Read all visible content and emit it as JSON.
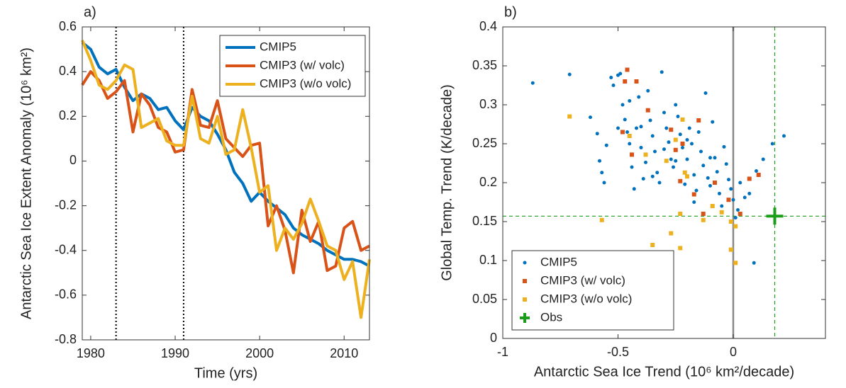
{
  "chart_data": [
    {
      "type": "line",
      "title": "a)",
      "xlabel": "Time (yrs)",
      "ylabel": "Antarctic Sea Ice Extent Anomaly (10⁶ km²)",
      "x": [
        1979,
        1980,
        1981,
        1982,
        1983,
        1984,
        1985,
        1986,
        1987,
        1988,
        1989,
        1990,
        1991,
        1992,
        1993,
        1994,
        1995,
        1996,
        1997,
        1998,
        1999,
        2000,
        2001,
        2002,
        2003,
        2004,
        2005,
        2006,
        2007,
        2008,
        2009,
        2010,
        2011,
        2012,
        2013
      ],
      "series": [
        {
          "name": "CMIP5",
          "color": "#0072bd",
          "values": [
            0.53,
            0.5,
            0.42,
            0.39,
            0.41,
            0.33,
            0.27,
            0.3,
            0.28,
            0.23,
            0.24,
            0.18,
            0.14,
            0.24,
            0.2,
            0.18,
            0.12,
            0.05,
            -0.05,
            -0.1,
            -0.18,
            -0.14,
            -0.18,
            -0.21,
            -0.24,
            -0.3,
            -0.33,
            -0.35,
            -0.37,
            -0.4,
            -0.42,
            -0.44,
            -0.44,
            -0.45,
            -0.47
          ]
        },
        {
          "name": "CMIP3 (w/ volc)",
          "color": "#d95319",
          "values": [
            0.34,
            0.4,
            0.36,
            0.28,
            0.31,
            0.36,
            0.13,
            0.3,
            0.25,
            0.15,
            0.13,
            0.04,
            0.05,
            0.32,
            0.16,
            0.15,
            0.27,
            0.1,
            0.06,
            0.02,
            0.07,
            0.08,
            -0.29,
            -0.2,
            -0.31,
            -0.5,
            -0.22,
            -0.36,
            -0.27,
            -0.49,
            -0.47,
            -0.3,
            -0.27,
            -0.4,
            -0.38
          ]
        },
        {
          "name": "CMIP3 (w/o volc)",
          "color": "#edb120",
          "values": [
            0.54,
            0.45,
            0.34,
            0.32,
            0.36,
            0.43,
            0.41,
            0.15,
            0.17,
            0.19,
            0.09,
            0.07,
            0.07,
            0.29,
            0.1,
            0.08,
            0.2,
            0.03,
            0.05,
            0.23,
            0.06,
            -0.14,
            -0.11,
            -0.4,
            -0.3,
            -0.35,
            -0.28,
            -0.17,
            -0.27,
            -0.38,
            -0.4,
            -0.53,
            -0.45,
            -0.7,
            -0.44
          ]
        }
      ],
      "vlines": [
        1983,
        1991
      ],
      "xlim": [
        1979,
        2013
      ],
      "xticks": [
        1980,
        1990,
        2000,
        2010
      ],
      "ylim": [
        -0.8,
        0.6
      ],
      "yticks": [
        -0.8,
        -0.6,
        -0.4,
        -0.2,
        0,
        0.2,
        0.4,
        0.6
      ],
      "legend": "upper right"
    },
    {
      "type": "scatter",
      "title": "b)",
      "xlabel": "Antarctic Sea Ice Trend (10⁶ km²/decade)",
      "ylabel": "Global Temp. Trend (K/decade)",
      "series": [
        {
          "name": "CMIP5",
          "color": "#0072bd",
          "marker": "o",
          "x": [
            -0.87,
            -0.71,
            -0.62,
            -0.59,
            -0.58,
            -0.57,
            -0.56,
            -0.55,
            -0.53,
            -0.52,
            -0.5,
            -0.49,
            -0.48,
            -0.47,
            -0.46,
            -0.45,
            -0.44,
            -0.43,
            -0.42,
            -0.41,
            -0.4,
            -0.39,
            -0.38,
            -0.37,
            -0.36,
            -0.35,
            -0.34,
            -0.33,
            -0.32,
            -0.31,
            -0.3,
            -0.29,
            -0.28,
            -0.27,
            -0.26,
            -0.25,
            -0.24,
            -0.23,
            -0.22,
            -0.21,
            -0.2,
            -0.19,
            -0.18,
            -0.17,
            -0.16,
            -0.15,
            -0.14,
            -0.13,
            -0.12,
            -0.11,
            -0.1,
            -0.09,
            -0.08,
            -0.07,
            -0.06,
            -0.05,
            -0.04,
            -0.03,
            -0.02,
            -0.01,
            0.0,
            0.01,
            0.02,
            0.03,
            0.05,
            0.07,
            0.1,
            0.13,
            0.17,
            0.22,
            0.09,
            -0.17,
            -0.25,
            -0.45,
            -0.3,
            -0.4,
            -0.2,
            -0.1,
            -0.35,
            -0.5
          ],
          "y": [
            0.328,
            0.339,
            0.284,
            0.263,
            0.228,
            0.213,
            0.2,
            0.248,
            0.335,
            0.325,
            0.338,
            0.34,
            0.3,
            0.281,
            0.265,
            0.25,
            0.22,
            0.192,
            0.27,
            0.31,
            0.245,
            0.205,
            0.226,
            0.318,
            0.28,
            0.26,
            0.24,
            0.213,
            0.2,
            0.342,
            0.29,
            0.27,
            0.252,
            0.23,
            0.22,
            0.3,
            0.285,
            0.262,
            0.245,
            0.198,
            0.23,
            0.27,
            0.25,
            0.21,
            0.19,
            0.265,
            0.24,
            0.222,
            0.315,
            0.206,
            0.196,
            0.278,
            0.232,
            0.214,
            0.186,
            0.17,
            0.246,
            0.224,
            0.204,
            0.192,
            0.178,
            0.155,
            0.165,
            0.2,
            0.181,
            0.186,
            0.215,
            0.23,
            0.25,
            0.26,
            0.097,
            0.175,
            0.228,
            0.305,
            0.243,
            0.272,
            0.255,
            0.232,
            0.208,
            0.27
          ]
        },
        {
          "name": "CMIP3 (w/ volc)",
          "color": "#d95319",
          "marker": "s",
          "x": [
            -0.46,
            -0.47,
            -0.42,
            -0.37,
            -0.48,
            -0.44,
            -0.27,
            -0.22,
            -0.25,
            -0.15,
            -0.23,
            -0.08,
            -0.02,
            0.07,
            0.11,
            0.03,
            -0.13,
            -0.17
          ],
          "y": [
            0.345,
            0.33,
            0.33,
            0.293,
            0.265,
            0.236,
            0.268,
            0.25,
            0.242,
            0.28,
            0.202,
            0.2,
            0.178,
            0.205,
            0.21,
            0.16,
            0.16,
            0.185
          ]
        },
        {
          "name": "CMIP3 (w/o volc)",
          "color": "#edb120",
          "marker": "s",
          "x": [
            -0.71,
            -0.57,
            -0.38,
            -0.29,
            -0.25,
            -0.21,
            -0.2,
            -0.23,
            -0.22,
            -0.27,
            -0.35,
            -0.23,
            -0.13,
            -0.09,
            -0.05,
            -0.01,
            0.01,
            -0.01,
            0.01,
            -0.45
          ],
          "y": [
            0.285,
            0.152,
            0.236,
            0.228,
            0.255,
            0.213,
            0.208,
            0.16,
            0.281,
            0.135,
            0.12,
            0.116,
            0.152,
            0.17,
            0.162,
            0.15,
            0.144,
            0.114,
            0.097,
            0.26
          ]
        },
        {
          "name": "Obs",
          "color": "#1a9e1a",
          "marker": "+",
          "x": [
            0.18
          ],
          "y": [
            0.157
          ]
        }
      ],
      "xlim": [
        -1,
        0.4
      ],
      "xticks": [
        -1,
        -0.5,
        0
      ],
      "ylim": [
        0,
        0.4
      ],
      "yticks": [
        0,
        0.05,
        0.1,
        0.15,
        0.2,
        0.25,
        0.3,
        0.35,
        0.4
      ],
      "legend": "lower left"
    }
  ]
}
